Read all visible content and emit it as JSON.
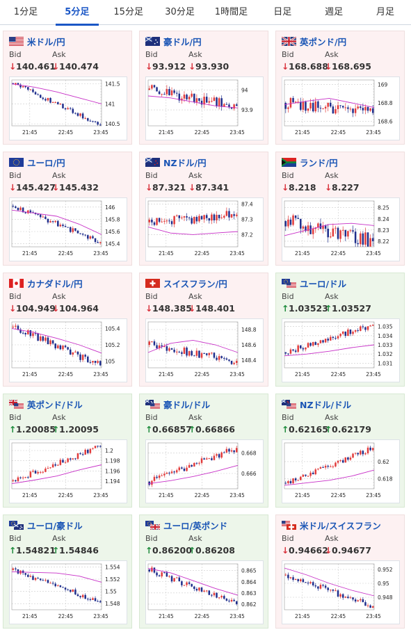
{
  "tabs": [
    {
      "label": "1分足",
      "active": false
    },
    {
      "label": "5分足",
      "active": true
    },
    {
      "label": "15分足",
      "active": false
    },
    {
      "label": "30分足",
      "active": false
    },
    {
      "label": "1時間足",
      "active": false
    },
    {
      "label": "日足",
      "active": false
    },
    {
      "label": "週足",
      "active": false
    },
    {
      "label": "月足",
      "active": false
    }
  ],
  "labels": {
    "bid": "Bid",
    "ask": "Ask"
  },
  "colors": {
    "up_candle": "#e23b3b",
    "down_candle": "#1f2e8c",
    "ma": "#c72fc7",
    "down_bg": "#fdf1f2",
    "up_bg": "#edf6ea",
    "link": "#1a55b5"
  },
  "cards": [
    {
      "pair": "米ドル/円",
      "flag": "us",
      "dir": "down",
      "bid": "140.461",
      "ask": "140.474",
      "chart_data": {
        "type": "candlestick",
        "x_ticks": [
          "21:45",
          "22:45",
          "23:45"
        ],
        "y_ticks": [
          "141.5",
          "141",
          "140.5"
        ],
        "ylim": [
          140.45,
          141.6
        ],
        "start": 141.52,
        "end": 140.47,
        "vol": 0.05,
        "ma": [
          141.5,
          141.42,
          141.3,
          141.15,
          141.0
        ]
      }
    },
    {
      "pair": "豪ドル/円",
      "flag": "au",
      "dir": "down",
      "bid": "93.912",
      "ask": "93.930",
      "chart_data": {
        "type": "candlestick",
        "x_ticks": [
          "21:45",
          "22:45",
          "23:45"
        ],
        "y_ticks": [
          "94",
          "93.9"
        ],
        "ylim": [
          93.82,
          94.05
        ],
        "start": 94.0,
        "end": 93.92,
        "vol": 0.025,
        "ma": [
          93.97,
          93.96,
          93.94,
          93.92,
          93.91
        ]
      }
    },
    {
      "pair": "英ポンド/円",
      "flag": "gb",
      "dir": "down",
      "bid": "168.688",
      "ask": "168.695",
      "chart_data": {
        "type": "candlestick",
        "x_ticks": [
          "21:45",
          "22:45",
          "23:45"
        ],
        "y_ticks": [
          "169",
          "168.8",
          "168.6"
        ],
        "ylim": [
          168.55,
          169.05
        ],
        "start": 168.8,
        "end": 168.69,
        "vol": 0.06,
        "ma": [
          168.78,
          168.82,
          168.85,
          168.8,
          168.75
        ]
      }
    },
    {
      "pair": "ユーロ/円",
      "flag": "eu",
      "dir": "down",
      "bid": "145.427",
      "ask": "145.432",
      "chart_data": {
        "type": "candlestick",
        "x_ticks": [
          "21:45",
          "22:45",
          "23:45"
        ],
        "y_ticks": [
          "146",
          "145.8",
          "145.6",
          "145.4"
        ],
        "ylim": [
          145.35,
          146.1
        ],
        "start": 146.02,
        "end": 145.43,
        "vol": 0.04,
        "ma": [
          145.95,
          145.9,
          145.85,
          145.72,
          145.55
        ]
      }
    },
    {
      "pair": "NZドル/円",
      "flag": "nz",
      "dir": "down",
      "bid": "87.321",
      "ask": "87.341",
      "chart_data": {
        "type": "candlestick",
        "x_ticks": [
          "21:45",
          "22:45",
          "23:45"
        ],
        "y_ticks": [
          "87.4",
          "87.3",
          "87.2"
        ],
        "ylim": [
          87.12,
          87.42
        ],
        "start": 87.28,
        "end": 87.33,
        "vol": 0.03,
        "ma": [
          87.25,
          87.21,
          87.2,
          87.21,
          87.22
        ]
      }
    },
    {
      "pair": "ランド/円",
      "flag": "za",
      "dir": "down",
      "bid": "8.218",
      "ask": "8.227",
      "chart_data": {
        "type": "candlestick",
        "x_ticks": [
          "21:45",
          "22:45",
          "23:45"
        ],
        "y_ticks": [
          "8.25",
          "8.24",
          "8.23",
          "8.22"
        ],
        "ylim": [
          8.215,
          8.256
        ],
        "start": 8.238,
        "end": 8.22,
        "vol": 0.006,
        "ma": [
          8.225,
          8.23,
          8.235,
          8.236,
          8.234
        ]
      }
    },
    {
      "pair": "カナダドル/円",
      "flag": "ca",
      "dir": "down",
      "bid": "104.949",
      "ask": "104.964",
      "chart_data": {
        "type": "candlestick",
        "x_ticks": [
          "21:45",
          "22:45",
          "23:45"
        ],
        "y_ticks": [
          "105.4",
          "105.2",
          "105"
        ],
        "ylim": [
          104.92,
          105.48
        ],
        "start": 105.42,
        "end": 104.95,
        "vol": 0.04,
        "ma": [
          105.4,
          105.35,
          105.28,
          105.2,
          105.1
        ]
      }
    },
    {
      "pair": "スイスフラン/円",
      "flag": "ch",
      "dir": "down",
      "bid": "148.385",
      "ask": "148.401",
      "chart_data": {
        "type": "candlestick",
        "x_ticks": [
          "21:45",
          "22:45",
          "23:45"
        ],
        "y_ticks": [
          "148.8",
          "148.6",
          "148.4"
        ],
        "ylim": [
          148.3,
          148.9
        ],
        "start": 148.6,
        "end": 148.39,
        "vol": 0.05,
        "ma": [
          148.5,
          148.62,
          148.66,
          148.6,
          148.5
        ]
      }
    },
    {
      "pair": "ユーロ/ドル",
      "flag": "eu-us",
      "dir": "up",
      "bid": "1.03523",
      "ask": "1.03527",
      "chart_data": {
        "type": "candlestick",
        "x_ticks": [
          "21:45",
          "22:45",
          "23:45"
        ],
        "y_ticks": [
          "1.035",
          "1.034",
          "1.033",
          "1.032",
          "1.031"
        ],
        "ylim": [
          1.0305,
          1.0355
        ],
        "start": 1.0322,
        "end": 1.0352,
        "vol": 0.0003,
        "ma": [
          1.0318,
          1.032,
          1.0323,
          1.0327,
          1.033
        ]
      }
    },
    {
      "pair": "英ポンド/ドル",
      "flag": "gb-us",
      "dir": "up",
      "bid": "1.20085",
      "ask": "1.20095",
      "chart_data": {
        "type": "candlestick",
        "x_ticks": [
          "21:45",
          "22:45",
          "23:45"
        ],
        "y_ticks": [
          "1.2",
          "1.198",
          "1.196",
          "1.194"
        ],
        "ylim": [
          1.1925,
          1.2015
        ],
        "start": 1.194,
        "end": 1.2008,
        "vol": 0.0005,
        "ma": [
          1.1935,
          1.1942,
          1.195,
          1.1962,
          1.1972
        ]
      }
    },
    {
      "pair": "豪ドル/ドル",
      "flag": "au-us",
      "dir": "up",
      "bid": "0.66857",
      "ask": "0.66866",
      "chart_data": {
        "type": "candlestick",
        "x_ticks": [
          "21:45",
          "22:45",
          "23:45"
        ],
        "y_ticks": [
          "0.668",
          "0.666"
        ],
        "ylim": [
          0.6645,
          0.669
        ],
        "start": 0.6652,
        "end": 0.6685,
        "vol": 0.0003,
        "ma": [
          0.665,
          0.6653,
          0.6657,
          0.6662,
          0.6668
        ]
      }
    },
    {
      "pair": "NZドル/ドル",
      "flag": "nz-us",
      "dir": "up",
      "bid": "0.62165",
      "ask": "0.62179",
      "chart_data": {
        "type": "candlestick",
        "x_ticks": [
          "21:45",
          "22:45",
          "23:45"
        ],
        "y_ticks": [
          "0.62",
          "0.618"
        ],
        "ylim": [
          0.6168,
          0.6222
        ],
        "start": 0.6175,
        "end": 0.6216,
        "vol": 0.0003,
        "ma": [
          0.6172,
          0.6175,
          0.6178,
          0.6183,
          0.619
        ]
      }
    },
    {
      "pair": "ユーロ/豪ドル",
      "flag": "eu-au",
      "dir": "up",
      "bid": "1.54821",
      "ask": "1.54846",
      "chart_data": {
        "type": "candlestick",
        "x_ticks": [
          "21:45",
          "22:45",
          "23:45"
        ],
        "y_ticks": [
          "1.554",
          "1.552",
          "1.55",
          "1.548"
        ],
        "ylim": [
          1.547,
          1.5545
        ],
        "start": 1.5535,
        "end": 1.5482,
        "vol": 0.0004,
        "ma": [
          1.5532,
          1.5531,
          1.553,
          1.5525,
          1.5515
        ]
      }
    },
    {
      "pair": "ユーロ/英ポンド",
      "flag": "eu-gb",
      "dir": "up",
      "bid": "0.86200",
      "ask": "0.86208",
      "chart_data": {
        "type": "candlestick",
        "x_ticks": [
          "21:45",
          "22:45",
          "23:45"
        ],
        "y_ticks": [
          "0.865",
          "0.864",
          "0.863",
          "0.862"
        ],
        "ylim": [
          0.8615,
          0.8656
        ],
        "start": 0.8651,
        "end": 0.862,
        "vol": 0.00025,
        "ma": [
          0.8652,
          0.8648,
          0.8641,
          0.8634,
          0.8628
        ]
      }
    },
    {
      "pair": "米ドル/スイスフラン",
      "flag": "us-ch",
      "dir": "down",
      "bid": "0.94662",
      "ask": "0.94677",
      "chart_data": {
        "type": "candlestick",
        "x_ticks": [
          "21:45",
          "22:45",
          "23:45"
        ],
        "y_ticks": [
          "0.952",
          "0.95",
          "0.948"
        ],
        "ylim": [
          0.9462,
          0.9528
        ],
        "start": 0.9512,
        "end": 0.9467,
        "vol": 0.0004,
        "ma": [
          0.9522,
          0.9512,
          0.95,
          0.949,
          0.9482
        ]
      }
    }
  ]
}
